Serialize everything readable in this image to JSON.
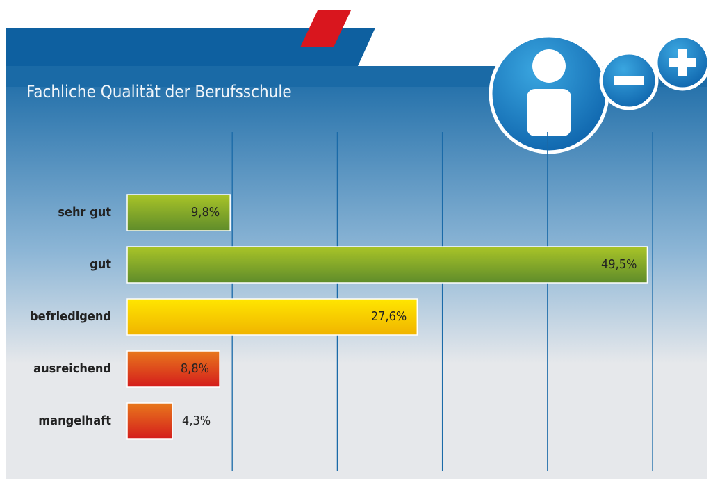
{
  "chart_data": {
    "type": "bar",
    "orientation": "horizontal",
    "title": "Fachliche Qualität der Berufsschule",
    "categories": [
      "sehr gut",
      "gut",
      "befriedigend",
      "ausreichend",
      "mangelhaft"
    ],
    "values": [
      9.8,
      49.5,
      27.6,
      8.8,
      4.3
    ],
    "value_labels": [
      "9,8%",
      "49,5%",
      "27,6%",
      "8,8%",
      "4,3%"
    ],
    "colors": [
      [
        "#a9c428",
        "#5f8c2a"
      ],
      [
        "#a9c428",
        "#5f8c2a"
      ],
      [
        "#ffe600",
        "#f0b400"
      ],
      [
        "#e8781c",
        "#d41c1c"
      ],
      [
        "#e8781c",
        "#d41c1c"
      ]
    ],
    "xlim": [
      0,
      50
    ],
    "xticks": [
      10,
      20,
      30,
      40,
      50
    ],
    "grid": true
  }
}
